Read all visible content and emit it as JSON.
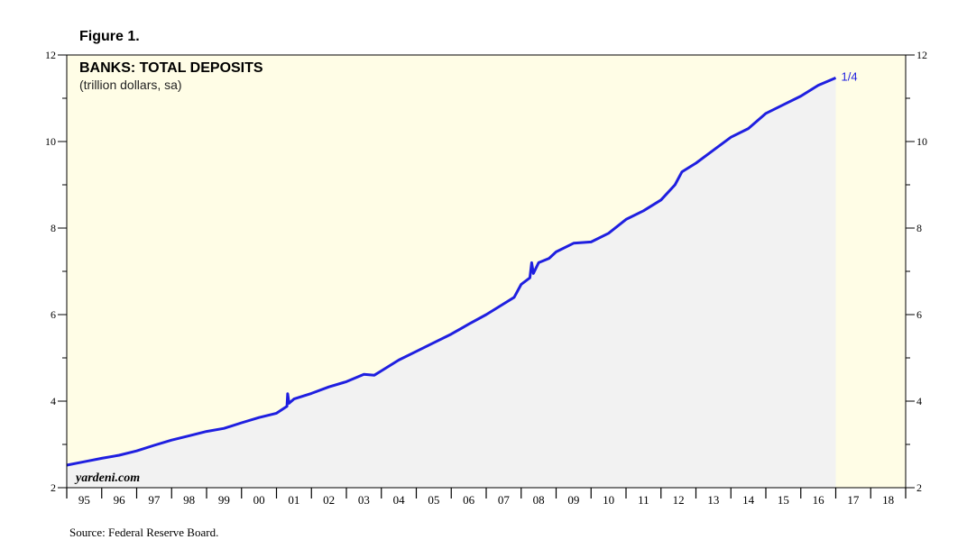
{
  "figure_label": "Figure 1.",
  "source": "Source: Federal Reserve Board.",
  "watermark": "yardeni.com",
  "colors": {
    "plot_background": "#fffde6",
    "area_fill": "#f2f2f2",
    "line": "#1f1fe0",
    "axis": "#000000"
  },
  "chart_data": {
    "type": "area",
    "title": "BANKS: TOTAL DEPOSITS",
    "subtitle": "(trillion dollars, sa)",
    "end_label": "1/4",
    "ylim": [
      2,
      12
    ],
    "y_ticks": [
      2,
      4,
      6,
      8,
      10,
      12
    ],
    "x_range": [
      1995.0,
      2019.0
    ],
    "x_tick_labels": [
      "95",
      "96",
      "97",
      "98",
      "99",
      "00",
      "01",
      "02",
      "03",
      "04",
      "05",
      "06",
      "07",
      "08",
      "09",
      "10",
      "11",
      "12",
      "13",
      "14",
      "15",
      "16",
      "17",
      "18"
    ],
    "series": [
      {
        "x": [
          1995.0,
          1995.5,
          1996.0,
          1996.5,
          1997.0,
          1997.5,
          1998.0,
          1998.5,
          1999.0,
          1999.5,
          2000.0,
          2000.5,
          2001.0,
          2001.3,
          2001.32,
          2001.36,
          2001.5,
          2002.0,
          2002.5,
          2003.0,
          2003.5,
          2003.8,
          2004.0,
          2004.5,
          2005.0,
          2005.5,
          2006.0,
          2006.5,
          2007.0,
          2007.5,
          2007.8,
          2008.0,
          2008.25,
          2008.3,
          2008.35,
          2008.5,
          2008.8,
          2009.0,
          2009.5,
          2010.0,
          2010.5,
          2011.0,
          2011.5,
          2012.0,
          2012.4,
          2012.6,
          2013.0,
          2013.5,
          2014.0,
          2014.5,
          2015.0,
          2015.5,
          2016.0,
          2016.5,
          2017.0
        ],
        "y": [
          2.52,
          2.6,
          2.68,
          2.75,
          2.85,
          2.98,
          3.1,
          3.2,
          3.3,
          3.37,
          3.5,
          3.62,
          3.72,
          3.88,
          4.17,
          3.95,
          4.05,
          4.18,
          4.33,
          4.45,
          4.62,
          4.6,
          4.7,
          4.95,
          5.15,
          5.35,
          5.55,
          5.78,
          6.0,
          6.25,
          6.4,
          6.7,
          6.85,
          7.2,
          6.95,
          7.2,
          7.3,
          7.45,
          7.65,
          7.68,
          7.88,
          8.2,
          8.4,
          8.65,
          9.0,
          9.3,
          9.5,
          9.8,
          10.1,
          10.3,
          10.65,
          10.85,
          11.05,
          11.3,
          11.47
        ]
      }
    ],
    "grid": false
  }
}
